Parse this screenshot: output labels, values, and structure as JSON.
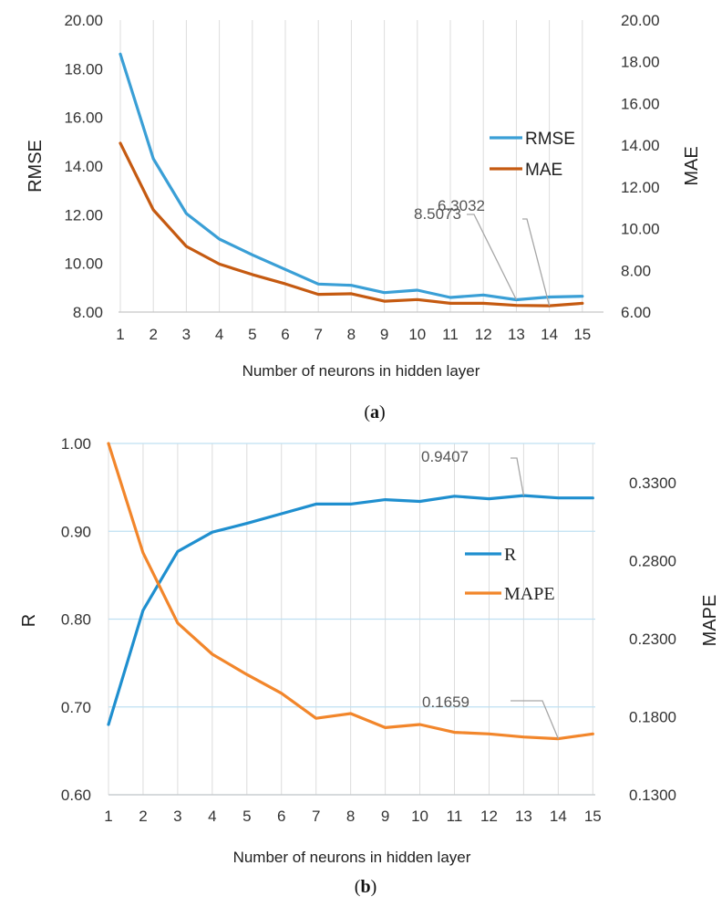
{
  "chart_data": [
    {
      "type": "line",
      "id": "a",
      "panel_label": "a",
      "x": [
        1,
        2,
        3,
        4,
        5,
        6,
        7,
        8,
        9,
        10,
        11,
        12,
        13,
        14,
        15
      ],
      "xlabel": "Number of neurons in hidden layer",
      "ylabel_left": "RMSE",
      "ylabel_right": "MAE",
      "ylim_left": [
        8,
        20
      ],
      "ylim_right": [
        6,
        20
      ],
      "yticks_left": [
        "8.00",
        "10.00",
        "12.00",
        "14.00",
        "16.00",
        "18.00",
        "20.00"
      ],
      "yticks_right": [
        "6.00",
        "8.00",
        "10.00",
        "12.00",
        "14.00",
        "16.00",
        "18.00",
        "20.00"
      ],
      "grid": "vertical",
      "legend_position": "right",
      "series": [
        {
          "name": "RMSE",
          "axis": "left",
          "color": "#3a9fd6",
          "values": [
            18.6,
            14.3,
            12.05,
            11.0,
            10.35,
            9.75,
            9.15,
            9.1,
            8.8,
            8.9,
            8.6,
            8.7,
            8.5073,
            8.62,
            8.65
          ]
        },
        {
          "name": "MAE",
          "axis": "right",
          "color": "#c55a11",
          "values": [
            14.1,
            10.9,
            9.15,
            8.3,
            7.8,
            7.35,
            6.85,
            6.88,
            6.52,
            6.6,
            6.42,
            6.42,
            6.32,
            6.3032,
            6.42
          ]
        }
      ],
      "annotations": [
        {
          "text": "8.5073",
          "series": 0,
          "x": 13
        },
        {
          "text": "6.3032",
          "series": 1,
          "x": 14
        }
      ]
    },
    {
      "type": "line",
      "id": "b",
      "panel_label": "b",
      "x": [
        1,
        2,
        3,
        4,
        5,
        6,
        7,
        8,
        9,
        10,
        11,
        12,
        13,
        14,
        15
      ],
      "xlabel": "Number of neurons in hidden layer",
      "ylabel_left": "R",
      "ylabel_right": "MAPE",
      "ylim_left": [
        0.6,
        1.0
      ],
      "ylim_right": [
        0.13,
        0.355
      ],
      "yticks_left": [
        "0.60",
        "0.70",
        "0.80",
        "0.90",
        "1.00"
      ],
      "yticks_right": [
        "0.1300",
        "0.1800",
        "0.2300",
        "0.2800",
        "0.3300"
      ],
      "grid": "both",
      "legend_position": "right",
      "series": [
        {
          "name": "R",
          "axis": "left",
          "color": "#1f8fcf",
          "values": [
            0.68,
            0.81,
            0.877,
            0.899,
            0.909,
            0.92,
            0.931,
            0.931,
            0.936,
            0.934,
            0.94,
            0.937,
            0.9407,
            0.938,
            0.938
          ]
        },
        {
          "name": "MAPE",
          "axis": "right",
          "color": "#f2862b",
          "values": [
            0.355,
            0.285,
            0.24,
            0.22,
            0.207,
            0.195,
            0.179,
            0.182,
            0.173,
            0.175,
            0.17,
            0.169,
            0.167,
            0.1659,
            0.169
          ]
        }
      ],
      "annotations": [
        {
          "text": "0.9407",
          "series": 0,
          "x": 13
        },
        {
          "text": "0.1659",
          "series": 1,
          "x": 14
        }
      ]
    }
  ]
}
